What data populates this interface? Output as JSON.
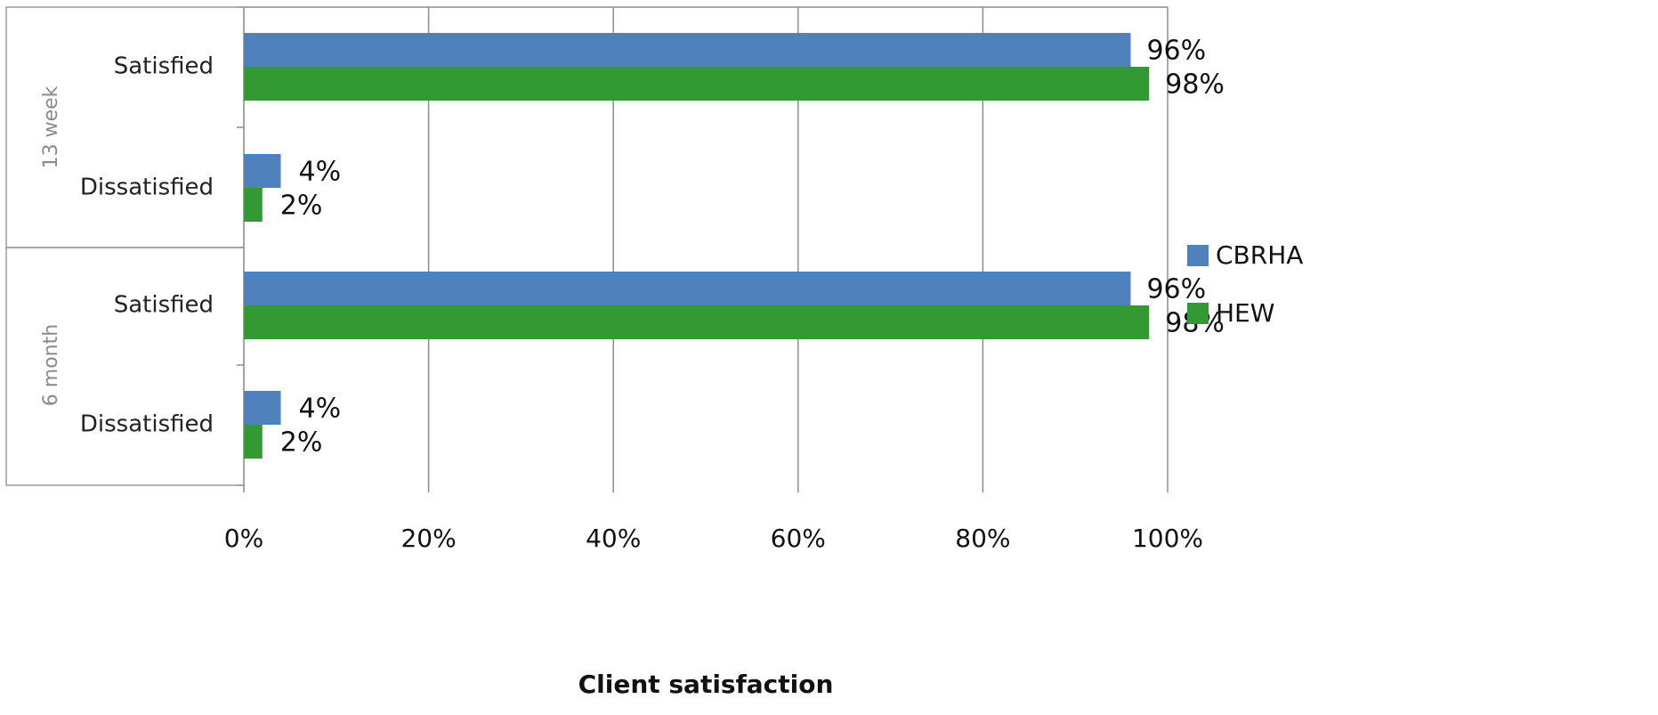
{
  "chart_data": {
    "type": "bar",
    "orientation": "horizontal",
    "groups": [
      {
        "name": "13 week",
        "categories": [
          "Satisfied",
          "Dissatisfied"
        ]
      },
      {
        "name": "6 month",
        "categories": [
          "Satisfied",
          "Dissatisfied"
        ]
      }
    ],
    "series": [
      {
        "name": "CBRHA",
        "color": "#4F81BD",
        "values": [
          96,
          4,
          96,
          4
        ],
        "labels": [
          "96%",
          "4%",
          "96%",
          "4%"
        ]
      },
      {
        "name": "HEW",
        "color": "#339933",
        "values": [
          98,
          2,
          98,
          2
        ],
        "labels": [
          "98%",
          "2%",
          "98%",
          "2%"
        ]
      }
    ],
    "xlabel": "Client satisfaction",
    "ylabel": "",
    "xlim": [
      0,
      100
    ],
    "xticks": [
      0,
      20,
      40,
      60,
      80,
      100
    ],
    "xtick_labels": [
      "0%",
      "20%",
      "40%",
      "60%",
      "80%",
      "100%"
    ],
    "grid": true,
    "legend_position": "right"
  }
}
